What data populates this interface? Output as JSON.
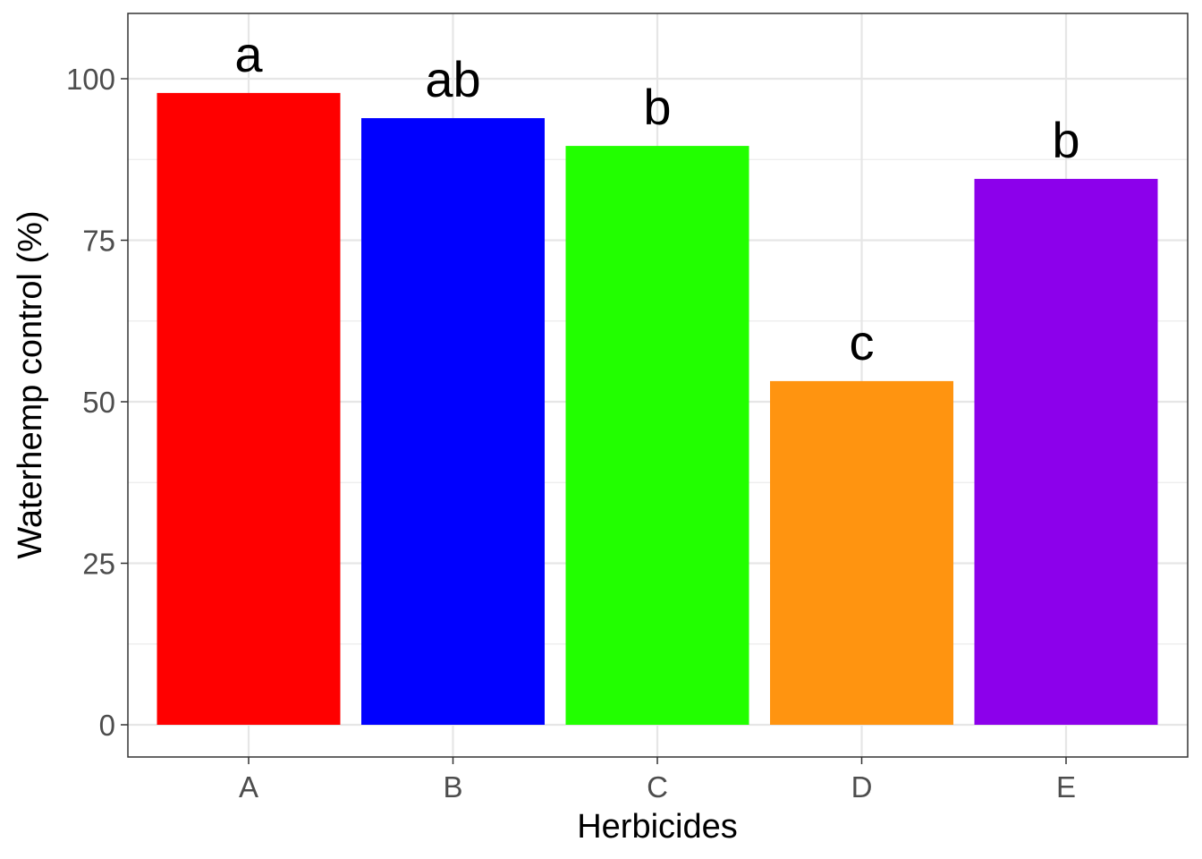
{
  "chart_data": {
    "type": "bar",
    "title": "",
    "xlabel": "Herbicides",
    "ylabel": "Waterhemp control (%)",
    "categories": [
      "A",
      "B",
      "C",
      "D",
      "E"
    ],
    "values": [
      97.8,
      93.9,
      89.6,
      53.2,
      84.5
    ],
    "significance_letters": [
      "a",
      "ab",
      "b",
      "c",
      "b"
    ],
    "bar_colors": [
      "#ff0000",
      "#0000ff",
      "#22ff00",
      "#ff9410",
      "#8c00eb"
    ],
    "ylim": [
      -5,
      109
    ],
    "yticks": [
      0,
      25,
      50,
      75,
      100
    ],
    "ytick_labels": [
      "0",
      "25",
      "50",
      "75",
      "100"
    ],
    "grid": true,
    "legend": "none"
  }
}
